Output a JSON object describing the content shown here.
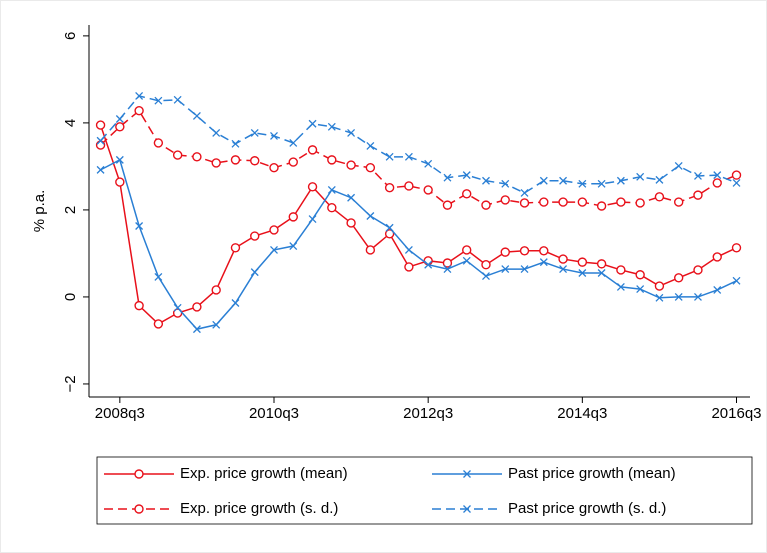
{
  "chart_data": {
    "type": "line",
    "y_label": "% p.a.",
    "x": [
      193,
      194,
      195,
      196,
      197,
      198,
      199,
      200,
      201,
      202,
      203,
      204,
      205,
      206,
      207,
      208,
      209,
      210,
      211,
      212,
      213,
      214,
      215,
      216,
      217,
      218,
      219,
      220,
      221,
      222,
      223,
      224,
      225,
      226
    ],
    "xlim": [
      192.4,
      226.7
    ],
    "xticks": [
      {
        "value": 194,
        "label": "2008q3"
      },
      {
        "value": 202,
        "label": "2010q3"
      },
      {
        "value": 210,
        "label": "2012q3"
      },
      {
        "value": 218,
        "label": "2014q3"
      },
      {
        "value": 226,
        "label": "2016q3"
      }
    ],
    "ylim": [
      -2.3,
      6.25
    ],
    "yticks": [
      {
        "value": -2,
        "label": "−2"
      },
      0,
      2,
      4,
      6
    ],
    "series": [
      {
        "name": "Exp. price growth (mean)",
        "color": "#e8101a",
        "dashed": false,
        "marker": "circle",
        "values": [
          3.95,
          2.64,
          -0.2,
          -0.62,
          -0.37,
          -0.23,
          0.16,
          1.13,
          1.4,
          1.54,
          1.84,
          2.53,
          2.05,
          1.7,
          1.08,
          1.45,
          0.69,
          0.83,
          0.78,
          1.08,
          0.74,
          1.03,
          1.06,
          1.06,
          0.87,
          0.8,
          0.76,
          0.62,
          0.51,
          0.25,
          0.44,
          0.62,
          0.92,
          1.13
        ]
      },
      {
        "name": "Past price growth (mean)",
        "color": "#2a7fd4",
        "dashed": false,
        "marker": "x",
        "values": [
          2.92,
          3.15,
          1.63,
          0.46,
          -0.25,
          -0.74,
          -0.64,
          -0.14,
          0.57,
          1.08,
          1.17,
          1.79,
          2.46,
          2.28,
          1.86,
          1.59,
          1.08,
          0.74,
          0.64,
          0.83,
          0.48,
          0.64,
          0.64,
          0.8,
          0.64,
          0.55,
          0.55,
          0.23,
          0.18,
          -0.02,
          0,
          0,
          0.16,
          0.37
        ]
      },
      {
        "name": "Exp. price growth (s. d.)",
        "color": "#e8101a",
        "dashed": true,
        "marker": "circle",
        "values": [
          3.49,
          3.91,
          4.28,
          3.54,
          3.26,
          3.22,
          3.08,
          3.15,
          3.13,
          2.97,
          3.1,
          3.38,
          3.15,
          3.03,
          2.97,
          2.51,
          2.55,
          2.46,
          2.11,
          2.37,
          2.11,
          2.23,
          2.16,
          2.18,
          2.18,
          2.18,
          2.09,
          2.18,
          2.16,
          2.3,
          2.18,
          2.34,
          2.62,
          2.8
        ]
      },
      {
        "name": "Past price growth (s. d.)",
        "color": "#2a7fd4",
        "dashed": true,
        "marker": "x",
        "values": [
          3.59,
          4.09,
          4.62,
          4.51,
          4.53,
          4.16,
          3.77,
          3.52,
          3.77,
          3.7,
          3.54,
          3.98,
          3.91,
          3.77,
          3.47,
          3.22,
          3.22,
          3.06,
          2.74,
          2.8,
          2.67,
          2.6,
          2.39,
          2.67,
          2.67,
          2.6,
          2.6,
          2.67,
          2.76,
          2.69,
          3.01,
          2.78,
          2.8,
          2.62
        ]
      }
    ]
  }
}
